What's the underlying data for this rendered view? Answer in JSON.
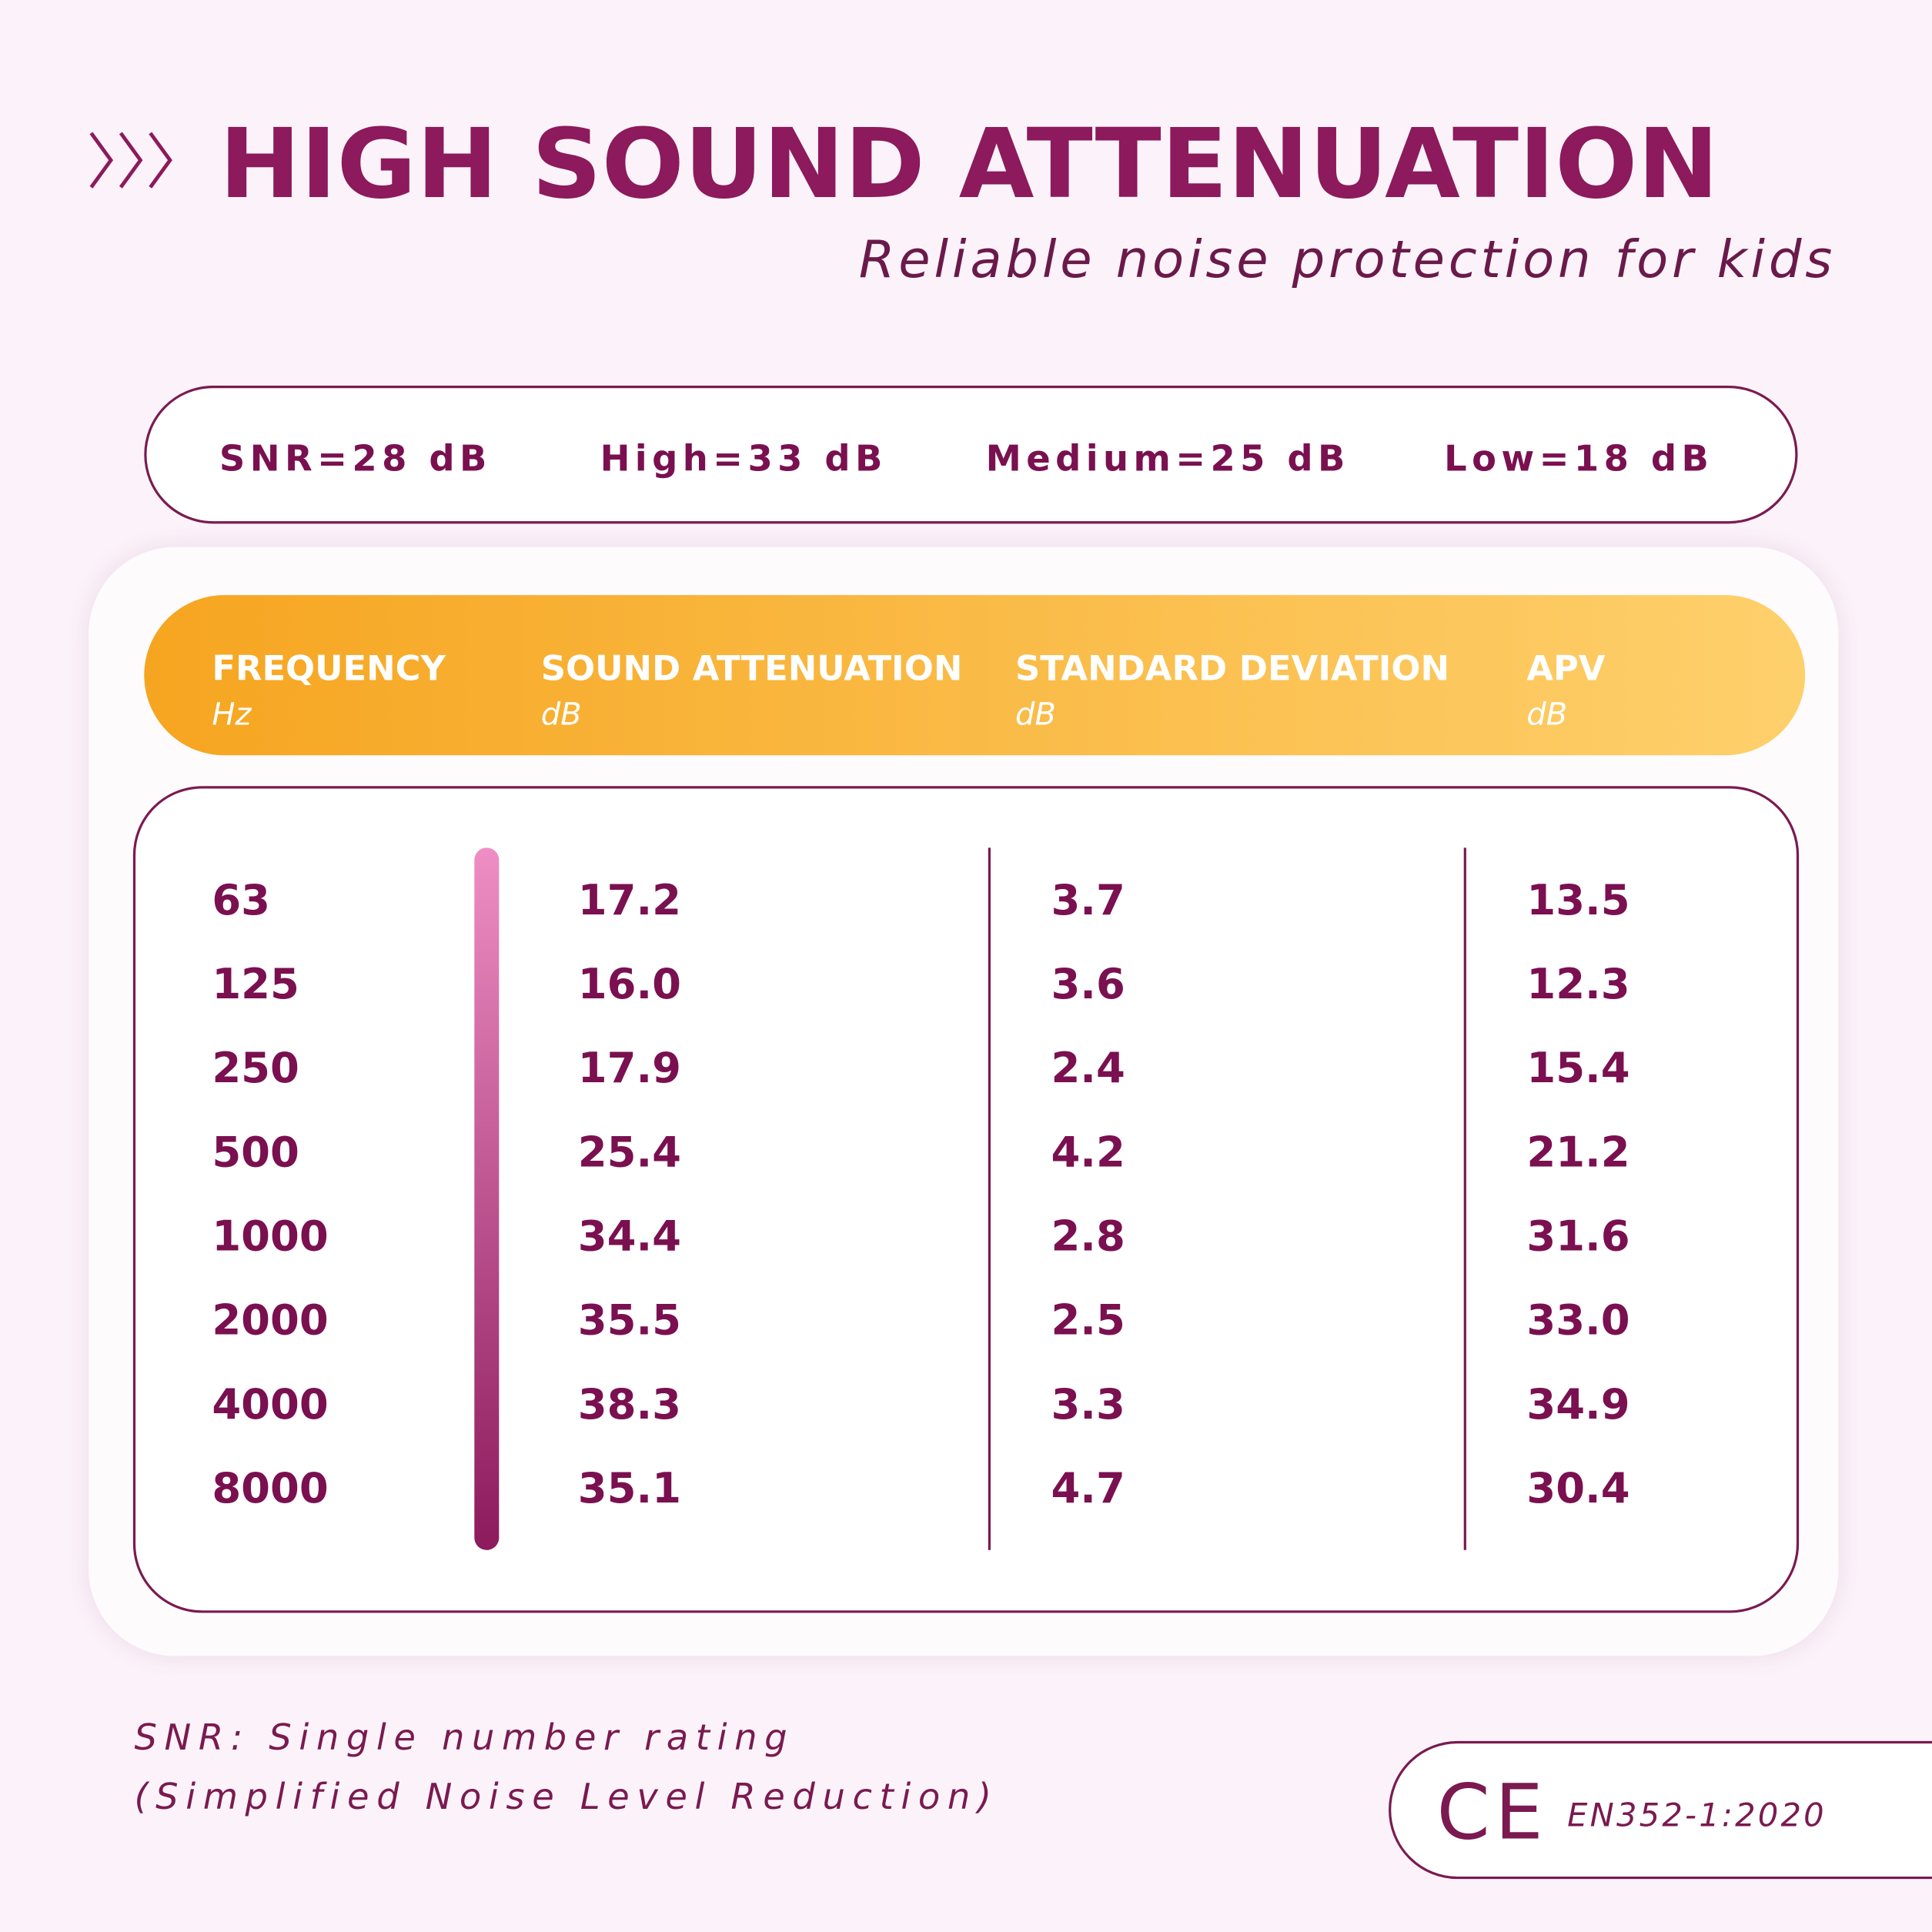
{
  "header": {
    "title": "HIGH SOUND ATTENUATION",
    "subtitle": "Reliable noise protection for kids"
  },
  "ratings": [
    "SNR=28 dB",
    "High=33 dB",
    "Medium=25 dB",
    "Low=18 dB"
  ],
  "table": {
    "columns": [
      {
        "name": "FREQUENCY",
        "unit": "Hz"
      },
      {
        "name": "SOUND ATTENUATION",
        "unit": "dB"
      },
      {
        "name": "STANDARD DEVIATION",
        "unit": "dB"
      },
      {
        "name": "APV",
        "unit": "dB"
      }
    ],
    "rows": [
      [
        63,
        17.2,
        3.7,
        13.5
      ],
      [
        125,
        "16.0",
        3.6,
        12.3
      ],
      [
        250,
        17.9,
        2.4,
        15.4
      ],
      [
        500,
        25.4,
        4.2,
        21.2
      ],
      [
        1000,
        34.4,
        2.8,
        31.6
      ],
      [
        2000,
        35.5,
        2.5,
        "33.0"
      ],
      [
        4000,
        38.3,
        3.3,
        34.9
      ],
      [
        8000,
        35.1,
        4.7,
        30.4
      ]
    ]
  },
  "footnote": {
    "lines": [
      "SNR: Single number rating",
      "(Simplified Noise Level Reduction)"
    ]
  },
  "certification": {
    "mark": "CE",
    "standard": "EN352-1:2020"
  }
}
